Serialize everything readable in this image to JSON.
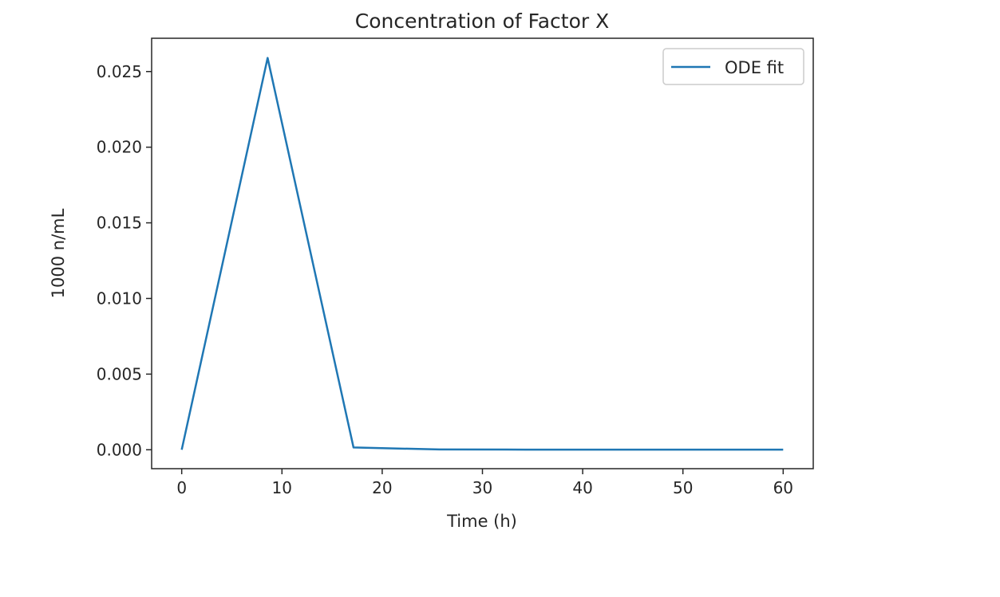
{
  "chart_data": {
    "type": "line",
    "title": "Concentration of Factor X",
    "xlabel": "Time (h)",
    "ylabel": "1000 n/mL",
    "xlim": [
      -3,
      63
    ],
    "ylim": [
      -0.00125,
      0.0272
    ],
    "xticks": [
      0,
      10,
      20,
      30,
      40,
      50,
      60
    ],
    "xtick_labels": [
      "0",
      "10",
      "20",
      "30",
      "40",
      "50",
      "60"
    ],
    "yticks": [
      0.0,
      0.005,
      0.01,
      0.015,
      0.02,
      0.025
    ],
    "ytick_labels": [
      "0.000",
      "0.005",
      "0.010",
      "0.015",
      "0.020",
      "0.025"
    ],
    "grid": false,
    "legend_position": "upper right",
    "series": [
      {
        "name": "ODE fit",
        "color": "#1f77b4",
        "x": [
          0,
          8.57,
          17.14,
          25.71,
          34.29,
          42.86,
          51.43,
          60
        ],
        "y": [
          0.0,
          0.0259,
          0.00015,
          2e-05,
          1e-05,
          1e-05,
          1e-05,
          1e-05
        ]
      }
    ]
  }
}
